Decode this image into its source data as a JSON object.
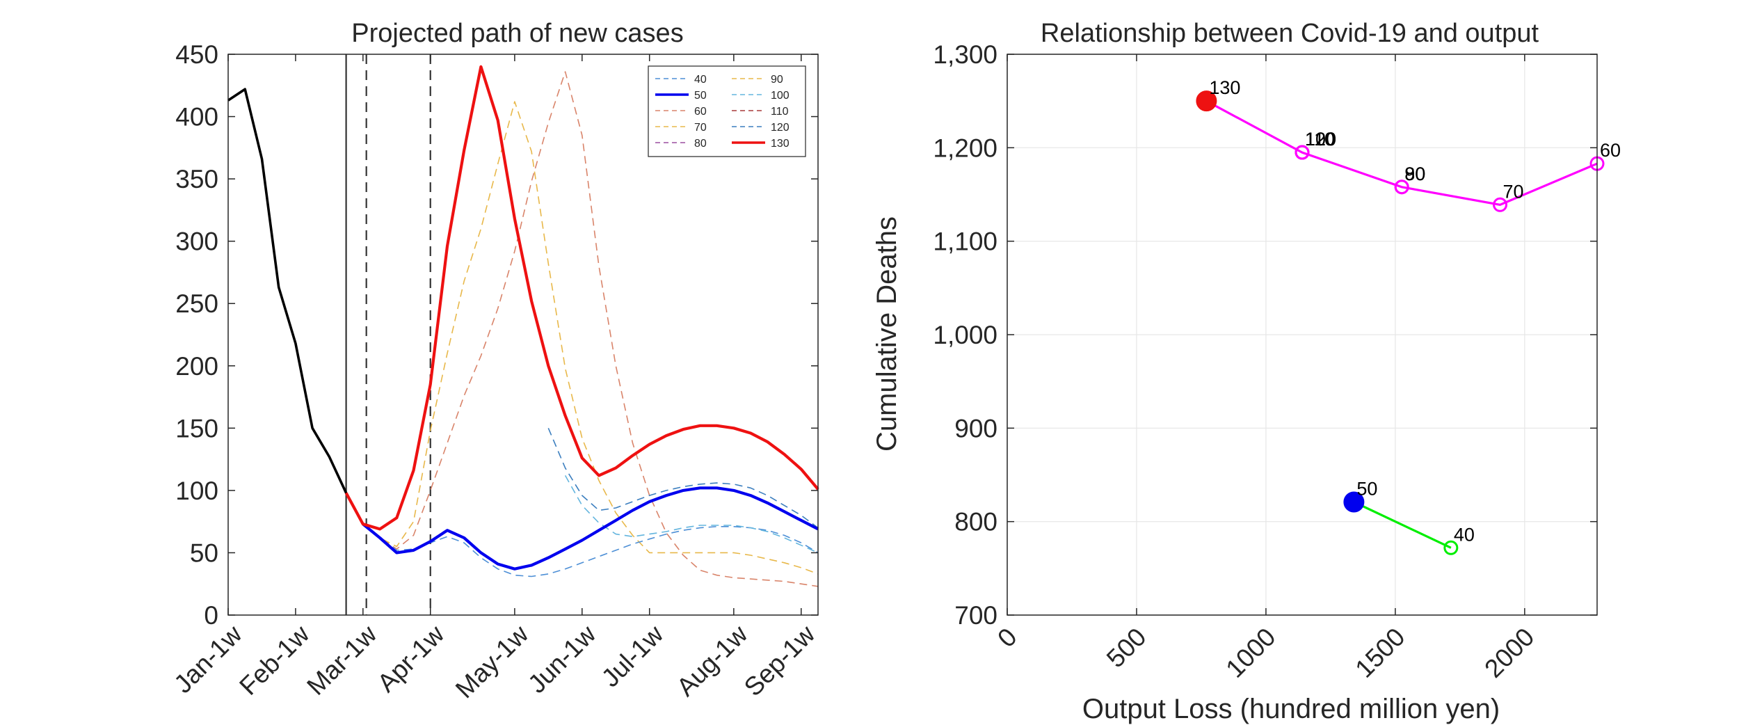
{
  "colors": {
    "black": "#000000",
    "blue": "#0000ee",
    "red": "#ee1111",
    "magenta": "#ff00ff",
    "green": "#00ee00",
    "series40": "#4d8fd6",
    "series60": "#d9846a",
    "series70": "#e8b84a",
    "series80": "#9b4fa0",
    "series90": "#e8b84a",
    "series100": "#63b5de",
    "series110": "#a83a3a",
    "series120": "#3c7fbf",
    "grid": "#e6e6e6",
    "axis": "#262626"
  },
  "chart_data": [
    {
      "type": "line",
      "title": "Projected path of new cases",
      "xlabel": "",
      "ylabel": "",
      "ylim": [
        0,
        450
      ],
      "yticks": [
        "0",
        "50",
        "100",
        "150",
        "200",
        "250",
        "300",
        "350",
        "400",
        "450"
      ],
      "xticks": [
        "Jan-1w",
        "Feb-1w",
        "Mar-1w",
        "Apr-1w",
        "May-1w",
        "Jun-1w",
        "Jul-1w",
        "Aug-1w",
        "Sep-1w"
      ],
      "xtick_weeks": [
        1,
        5,
        9,
        13,
        18,
        22,
        26,
        31,
        35
      ],
      "xlim": [
        1,
        36
      ],
      "vlines": [
        {
          "week": 8.0,
          "style": "solid"
        },
        {
          "week": 9.2,
          "style": "dashed"
        },
        {
          "week": 13.0,
          "style": "dashed"
        }
      ],
      "grid": false,
      "legend_position": "top-right",
      "legend": [
        {
          "label": "40",
          "style": "dashed",
          "color": "series40"
        },
        {
          "label": "50",
          "style": "solid-thick",
          "color": "blue"
        },
        {
          "label": "60",
          "style": "dashed",
          "color": "series60"
        },
        {
          "label": "70",
          "style": "dashed",
          "color": "series70"
        },
        {
          "label": "80",
          "style": "dashed",
          "color": "series80"
        },
        {
          "label": "90",
          "style": "dashed",
          "color": "series90"
        },
        {
          "label": "100",
          "style": "dashed",
          "color": "series100"
        },
        {
          "label": "110",
          "style": "dashed",
          "color": "series110"
        },
        {
          "label": "120",
          "style": "dashed",
          "color": "series120"
        },
        {
          "label": "130",
          "style": "solid-thick",
          "color": "red"
        }
      ],
      "series": [
        {
          "id": "history",
          "style": "solid",
          "color": "black",
          "x": [
            1,
            2,
            3,
            4,
            5,
            6,
            7,
            8,
            9
          ],
          "y": [
            413,
            422,
            366,
            263,
            218,
            150,
            127,
            98,
            73
          ]
        },
        {
          "name": "70",
          "style": "dashed",
          "color": "series70",
          "x": [
            9,
            10,
            11,
            12,
            13,
            14,
            15,
            16,
            17,
            18,
            19,
            20,
            21,
            22,
            23,
            24,
            25,
            26,
            27,
            28,
            29,
            30,
            31,
            32,
            33,
            34,
            35,
            36
          ],
          "y": [
            73,
            62,
            55,
            75,
            148,
            210,
            268,
            310,
            362,
            412,
            372,
            282,
            198,
            142,
            108,
            82,
            64,
            50,
            50,
            50,
            50,
            50,
            50,
            48,
            45,
            42,
            38,
            33
          ]
        },
        {
          "name": "60",
          "style": "dashed",
          "color": "series60",
          "x": [
            9,
            10,
            11,
            12,
            13,
            14,
            15,
            16,
            17,
            18,
            19,
            20,
            21,
            22,
            23,
            24,
            25,
            26,
            27,
            28,
            29,
            30,
            31,
            32,
            33,
            34,
            35,
            36
          ],
          "y": [
            73,
            62,
            53,
            64,
            100,
            138,
            176,
            208,
            246,
            292,
            348,
            395,
            436,
            385,
            280,
            200,
            138,
            96,
            66,
            48,
            36,
            32,
            30,
            29,
            28,
            27,
            25,
            23
          ]
        },
        {
          "name": "40",
          "style": "dashed",
          "color": "series40",
          "x": [
            9,
            10,
            11,
            12,
            13,
            14,
            15,
            16,
            17,
            18,
            19,
            20,
            21,
            22,
            23,
            24,
            25,
            26,
            27,
            28,
            29,
            30,
            31,
            32,
            33,
            34,
            35,
            36
          ],
          "y": [
            73,
            62,
            52,
            53,
            58,
            63,
            58,
            46,
            37,
            32,
            31,
            33,
            37,
            42,
            47,
            52,
            57,
            61,
            65,
            68,
            70,
            71,
            71,
            70,
            68,
            64,
            58,
            50
          ]
        },
        {
          "name": "120",
          "style": "dashed",
          "color": "series120",
          "x": [
            20,
            21,
            22,
            23,
            24,
            25,
            26,
            27,
            28,
            29,
            30,
            31,
            32,
            33,
            34,
            35,
            36
          ],
          "y": [
            150,
            118,
            96,
            84,
            86,
            91,
            96,
            100,
            103,
            105,
            106,
            105,
            102,
            96,
            88,
            80,
            70
          ]
        },
        {
          "name": "100",
          "style": "dashed",
          "color": "series100",
          "x": [
            21,
            22,
            23,
            24,
            25,
            26,
            27,
            28,
            29,
            30,
            31,
            32,
            33,
            34,
            35,
            36
          ],
          "y": [
            112,
            88,
            74,
            65,
            63,
            65,
            67,
            70,
            72,
            72,
            72,
            70,
            67,
            62,
            56,
            50
          ]
        },
        {
          "name": "50",
          "style": "solid-thick",
          "color": "blue",
          "x": [
            9,
            10,
            11,
            12,
            13,
            14,
            15,
            16,
            17,
            18,
            19,
            20,
            21,
            22,
            23,
            24,
            25,
            26,
            27,
            28,
            29,
            30,
            31,
            32,
            33,
            34,
            35,
            36
          ],
          "y": [
            73,
            62,
            50,
            52,
            59,
            68,
            62,
            50,
            41,
            37,
            40,
            46,
            53,
            60,
            68,
            76,
            84,
            91,
            96,
            100,
            102,
            102,
            100,
            96,
            90,
            83,
            76,
            69
          ]
        },
        {
          "name": "130",
          "style": "solid-thick",
          "color": "red",
          "x": [
            8,
            9,
            10,
            11,
            12,
            13,
            14,
            15,
            16,
            17,
            18,
            19,
            20,
            21,
            22,
            23,
            24,
            25,
            26,
            27,
            28,
            29,
            30,
            31,
            32,
            33,
            34,
            35,
            36
          ],
          "y": [
            98,
            73,
            69,
            78,
            116,
            185,
            296,
            373,
            440,
            397,
            318,
            252,
            200,
            160,
            126,
            112,
            118,
            128,
            137,
            144,
            149,
            152,
            152,
            150,
            146,
            139,
            129,
            117,
            101
          ]
        }
      ]
    },
    {
      "type": "scatter",
      "title": "Relationship between Covid-19 and output",
      "xlabel": "Output Loss (hundred million yen)",
      "ylabel": "Cumulative Deaths",
      "xlim": [
        0,
        2280
      ],
      "ylim": [
        700,
        1300
      ],
      "xticks": [
        "0",
        "500",
        "1000",
        "1500",
        "2000"
      ],
      "xtick_values": [
        0,
        500,
        1000,
        1500,
        2000
      ],
      "yticks": [
        "700",
        "800",
        "900",
        "1,000",
        "1,100",
        "1,200",
        "1,300"
      ],
      "ytick_values": [
        700,
        800,
        900,
        1000,
        1100,
        1200,
        1300
      ],
      "grid": true,
      "lines": [
        {
          "color": "magenta",
          "x": [
            770,
            1140,
            1525,
            1905,
            2280
          ],
          "y": [
            1250,
            1195,
            1158,
            1139,
            1183
          ]
        },
        {
          "color": "green",
          "x": [
            1340,
            1715
          ],
          "y": [
            821,
            772
          ]
        }
      ],
      "points": [
        {
          "label": "130",
          "x": 770,
          "y": 1250,
          "marker": "filled",
          "color": "red"
        },
        {
          "label": "120",
          "x": 1140,
          "y": 1195,
          "marker": "open",
          "color": "magenta"
        },
        {
          "label": "110",
          "x": 1140,
          "y": 1195,
          "marker": "open",
          "color": "magenta"
        },
        {
          "label": "100",
          "x": 1140,
          "y": 1195,
          "marker": "open",
          "color": "magenta"
        },
        {
          "label": "90",
          "x": 1525,
          "y": 1158,
          "marker": "open",
          "color": "magenta"
        },
        {
          "label": "80",
          "x": 1525,
          "y": 1158,
          "marker": "open",
          "color": "magenta"
        },
        {
          "label": "70",
          "x": 1905,
          "y": 1139,
          "marker": "open",
          "color": "magenta"
        },
        {
          "label": "60",
          "x": 2280,
          "y": 1183,
          "marker": "open",
          "color": "magenta"
        },
        {
          "label": "50",
          "x": 1340,
          "y": 821,
          "marker": "filled",
          "color": "blue"
        },
        {
          "label": "40",
          "x": 1715,
          "y": 772,
          "marker": "open",
          "color": "green"
        }
      ]
    }
  ]
}
